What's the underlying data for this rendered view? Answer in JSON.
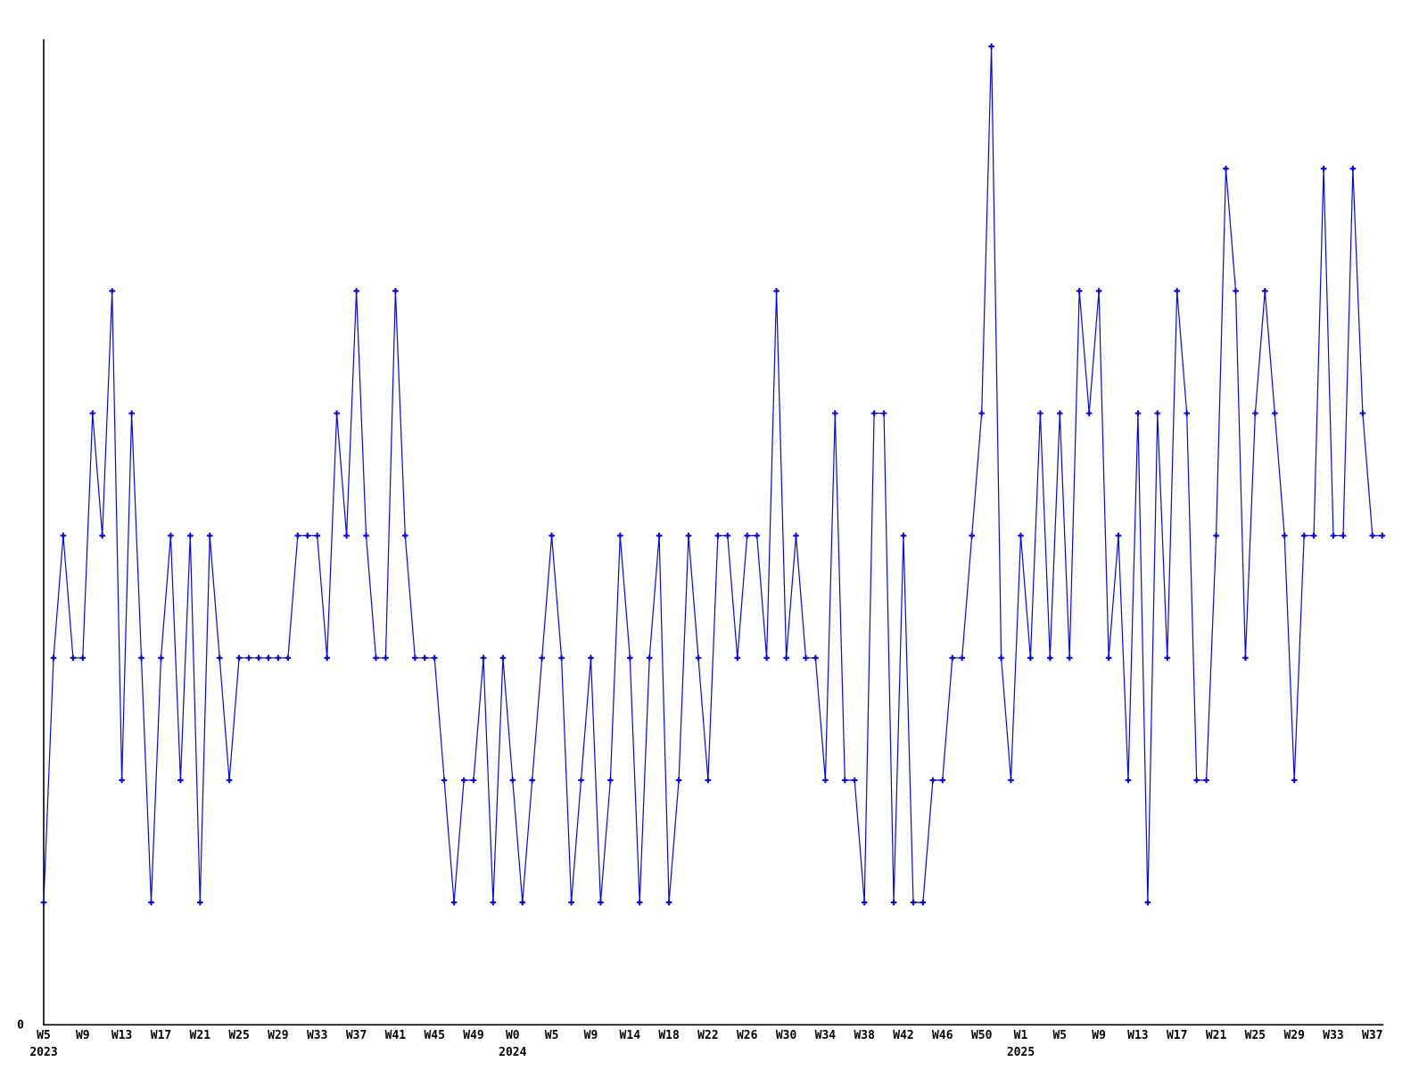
{
  "chart_data": {
    "type": "line",
    "title": "",
    "xlabel": "",
    "ylabel": "",
    "grid": false,
    "legend": null,
    "background_color": "#ffffff",
    "axis_color": "#000000",
    "ylim": [
      0,
      8.05
    ],
    "points_per_tick": 4,
    "y_axis": {
      "zero_label": "0"
    },
    "x_axis": {
      "tick_labels": [
        "W5",
        "W9",
        "W13",
        "W17",
        "W21",
        "W25",
        "W29",
        "W33",
        "W37",
        "W41",
        "W45",
        "W49",
        "W0",
        "W5",
        "W9",
        "W14",
        "W18",
        "W22",
        "W26",
        "W30",
        "W34",
        "W38",
        "W42",
        "W46",
        "W50",
        "W1",
        "W5",
        "W9",
        "W13",
        "W17",
        "W21",
        "W25",
        "W29",
        "W33",
        "W37"
      ],
      "year_labels": [
        {
          "text": "2023",
          "tick_index": 0
        },
        {
          "text": "2024",
          "tick_index": 12
        },
        {
          "text": "2025",
          "tick_index": 25
        }
      ]
    },
    "series": [
      {
        "name": "weekly-count",
        "color": "#0505ee",
        "marker": "plus",
        "values": [
          1,
          3,
          4,
          3,
          3,
          5,
          4,
          6,
          2,
          5,
          3,
          1,
          3,
          4,
          2,
          4,
          1,
          4,
          3,
          2,
          3,
          3,
          3,
          3,
          3,
          3,
          4,
          4,
          4,
          3,
          5,
          4,
          6,
          4,
          3,
          3,
          6,
          4,
          3,
          3,
          3,
          2,
          1,
          2,
          2,
          3,
          1,
          3,
          2,
          1,
          2,
          3,
          4,
          3,
          1,
          2,
          3,
          1,
          2,
          4,
          3,
          1,
          3,
          4,
          1,
          2,
          4,
          3,
          2,
          4,
          4,
          3,
          4,
          4,
          3,
          6,
          3,
          4,
          3,
          3,
          2,
          5,
          2,
          2,
          1,
          5,
          5,
          1,
          4,
          1,
          1,
          2,
          2,
          3,
          3,
          4,
          5,
          8,
          3,
          2,
          4,
          3,
          5,
          3,
          5,
          3,
          6,
          5,
          6,
          3,
          4,
          2,
          5,
          1,
          5,
          3,
          6,
          5,
          2,
          2,
          4,
          7,
          6,
          3,
          5,
          6,
          5,
          4,
          2,
          4,
          4,
          7,
          4,
          4,
          7,
          5,
          4,
          4
        ]
      }
    ]
  }
}
